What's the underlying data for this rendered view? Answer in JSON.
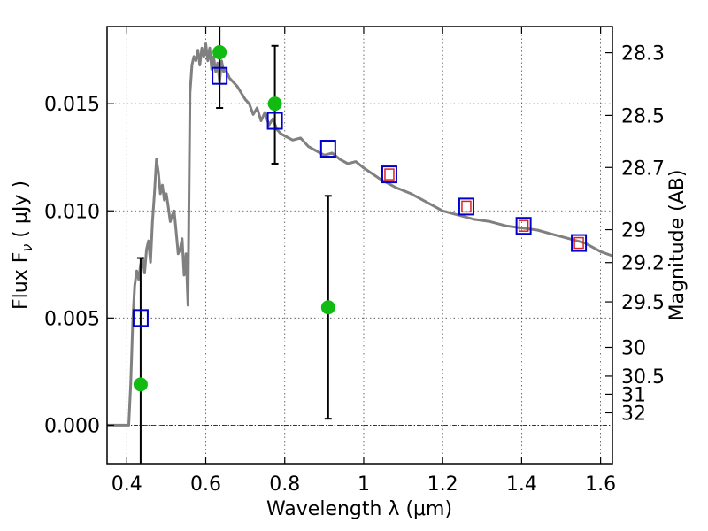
{
  "chart_data": {
    "type": "scatter",
    "xlabel": "Wavelength  λ (μm)",
    "ylabel": "Flux  F",
    "ylabel_subscript": "ν",
    "ylabel_unit": " ( μJy )",
    "y2label": "Magnitude (AB)",
    "xlim": [
      0.35,
      1.63
    ],
    "ylim": [
      -0.0018,
      0.0186
    ],
    "grid": true,
    "x_ticks": [
      0.4,
      0.6,
      0.8,
      1.0,
      1.2,
      1.4,
      1.6
    ],
    "x_tick_labels": [
      "0.4",
      "0.6",
      "0.8",
      "1",
      "1.2",
      "1.4",
      "1.6"
    ],
    "y_ticks": [
      0.0,
      0.005,
      0.01,
      0.015
    ],
    "y_tick_labels": [
      "0.000",
      "0.005",
      "0.010",
      "0.015"
    ],
    "mag_ticks": [
      28.3,
      28.5,
      28.7,
      29,
      29.2,
      29.5,
      30,
      30.5,
      31,
      32
    ],
    "mag_tick_labels": [
      "28.3",
      "28.5",
      "28.7",
      "29",
      "29.2",
      "29.5",
      "30",
      "30.5",
      "31",
      "32"
    ],
    "colors": {
      "sed": "#808080",
      "observed": "#11bb11",
      "model_box": "#0000cc",
      "model_inner": "#dd2222",
      "errorbar": "#000000",
      "zero_line": "#000000"
    },
    "series": [
      {
        "kind": "line",
        "x": [
          0.35,
          0.405,
          0.41,
          0.415,
          0.42,
          0.425,
          0.43,
          0.435,
          0.44,
          0.445,
          0.45,
          0.455,
          0.46,
          0.465,
          0.47,
          0.475,
          0.48,
          0.485,
          0.49,
          0.495,
          0.5,
          0.505,
          0.51,
          0.515,
          0.52,
          0.525,
          0.53,
          0.535,
          0.54,
          0.545,
          0.55,
          0.555,
          0.56,
          0.565,
          0.57,
          0.575,
          0.58,
          0.585,
          0.59,
          0.595,
          0.6,
          0.605,
          0.61,
          0.615,
          0.62,
          0.625,
          0.63,
          0.635,
          0.64,
          0.645,
          0.65,
          0.66,
          0.67,
          0.68,
          0.69,
          0.7,
          0.71,
          0.72,
          0.73,
          0.74,
          0.75,
          0.76,
          0.77,
          0.78,
          0.79,
          0.8,
          0.82,
          0.84,
          0.86,
          0.88,
          0.9,
          0.92,
          0.94,
          0.96,
          0.98,
          1.0,
          1.04,
          1.08,
          1.12,
          1.16,
          1.2,
          1.24,
          1.28,
          1.32,
          1.36,
          1.4,
          1.44,
          1.48,
          1.52,
          1.56,
          1.6,
          1.63
        ],
        "y": [
          0.0,
          0.0,
          0.002,
          0.0048,
          0.0065,
          0.0072,
          0.0068,
          0.0075,
          0.0078,
          0.0071,
          0.0082,
          0.0086,
          0.0076,
          0.0095,
          0.0108,
          0.0124,
          0.0118,
          0.0108,
          0.0112,
          0.0105,
          0.0108,
          0.0102,
          0.0095,
          0.0098,
          0.01,
          0.009,
          0.008,
          0.0082,
          0.0087,
          0.007,
          0.008,
          0.0056,
          0.0155,
          0.0168,
          0.0172,
          0.017,
          0.0175,
          0.0168,
          0.0176,
          0.0172,
          0.0178,
          0.017,
          0.0176,
          0.0166,
          0.0172,
          0.0165,
          0.0169,
          0.016,
          0.017,
          0.0165,
          0.0166,
          0.0162,
          0.016,
          0.0158,
          0.0155,
          0.0152,
          0.015,
          0.0145,
          0.0148,
          0.0142,
          0.0146,
          0.014,
          0.0143,
          0.0138,
          0.0136,
          0.0135,
          0.0133,
          0.0134,
          0.013,
          0.0128,
          0.0126,
          0.0127,
          0.0124,
          0.0122,
          0.0123,
          0.012,
          0.0115,
          0.0111,
          0.0108,
          0.0104,
          0.01,
          0.0098,
          0.0096,
          0.0095,
          0.0093,
          0.0092,
          0.0091,
          0.0089,
          0.0087,
          0.0085,
          0.0081,
          0.0079
        ]
      },
      {
        "kind": "points-with-errors",
        "x": [
          0.435,
          0.635,
          0.775,
          0.91
        ],
        "y": [
          0.0019,
          0.0174,
          0.015,
          0.0055
        ],
        "yerr_low": [
          -0.0018,
          0.0148,
          0.0122,
          0.0003
        ],
        "yerr_high": [
          0.0078,
          0.0186,
          0.0177,
          0.0107
        ]
      },
      {
        "kind": "model-boxes",
        "x": [
          0.435,
          0.635,
          0.775,
          0.91,
          1.065,
          1.26,
          1.405,
          1.545
        ],
        "y": [
          0.005,
          0.0163,
          0.0142,
          0.0129,
          0.0117,
          0.0102,
          0.0093,
          0.0085
        ],
        "inner": [
          false,
          false,
          false,
          false,
          true,
          true,
          true,
          true
        ]
      }
    ]
  }
}
